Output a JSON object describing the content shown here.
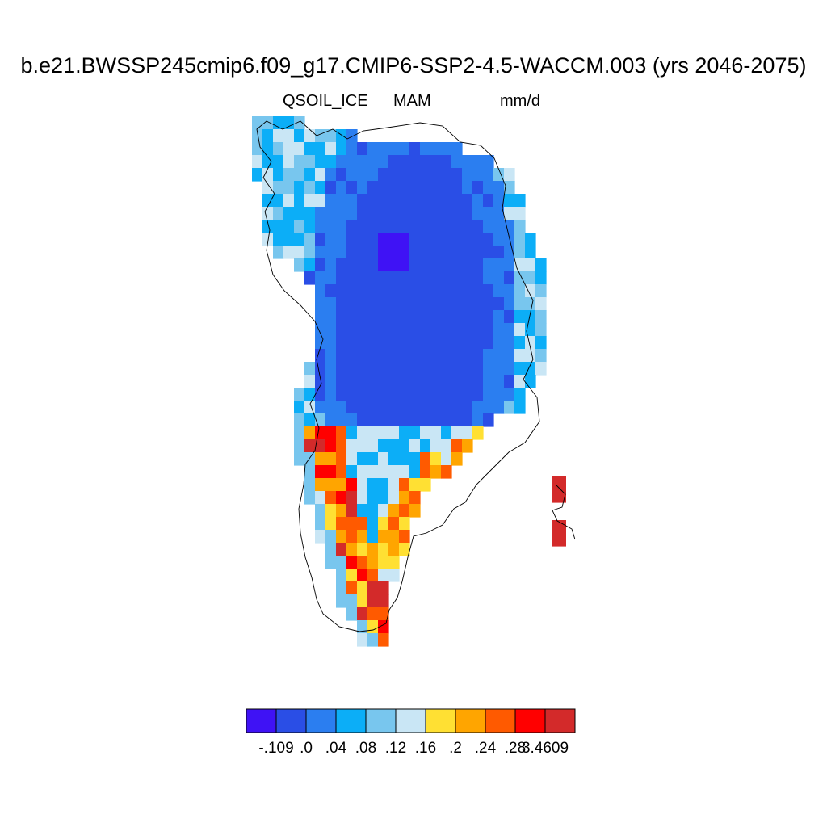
{
  "header": {
    "title": "b.e21.BWSSP245cmip6.f09_g17.CMIP6-SSP2-4.5-WACCM.003 (yrs 2046-2075)",
    "variable": "QSOIL_ICE",
    "season": "MAM",
    "units": "mm/d"
  },
  "colorbar": {
    "colors": [
      "#3f12f5",
      "#2a4ee6",
      "#2b7ef0",
      "#0caef7",
      "#78c6ee",
      "#c9e6f5",
      "#ffe033",
      "#ffa500",
      "#ff5a00",
      "#ff0000",
      "#d32a2a"
    ],
    "labels": [
      "-.109",
      ".0",
      ".04",
      ".08",
      ".12",
      ".16",
      ".2",
      ".24",
      ".28",
      "3.4609"
    ]
  },
  "map": {
    "region": "Greenland",
    "legend": "bottom",
    "grid": false
  }
}
